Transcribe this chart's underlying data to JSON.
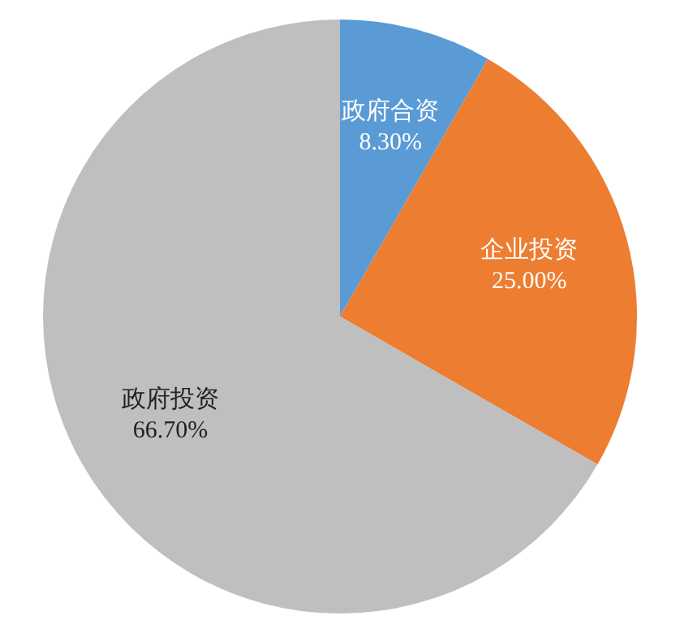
{
  "chart_data": {
    "type": "pie",
    "categories": [
      "政府合资",
      "企业投资",
      "政府投资"
    ],
    "values": [
      8.3,
      25.0,
      66.7
    ],
    "value_labels": [
      "8.30%",
      "25.00%",
      "66.70%"
    ],
    "colors": [
      "#5b9bd5",
      "#ed7d31",
      "#bfbfbf"
    ],
    "legend": false
  }
}
